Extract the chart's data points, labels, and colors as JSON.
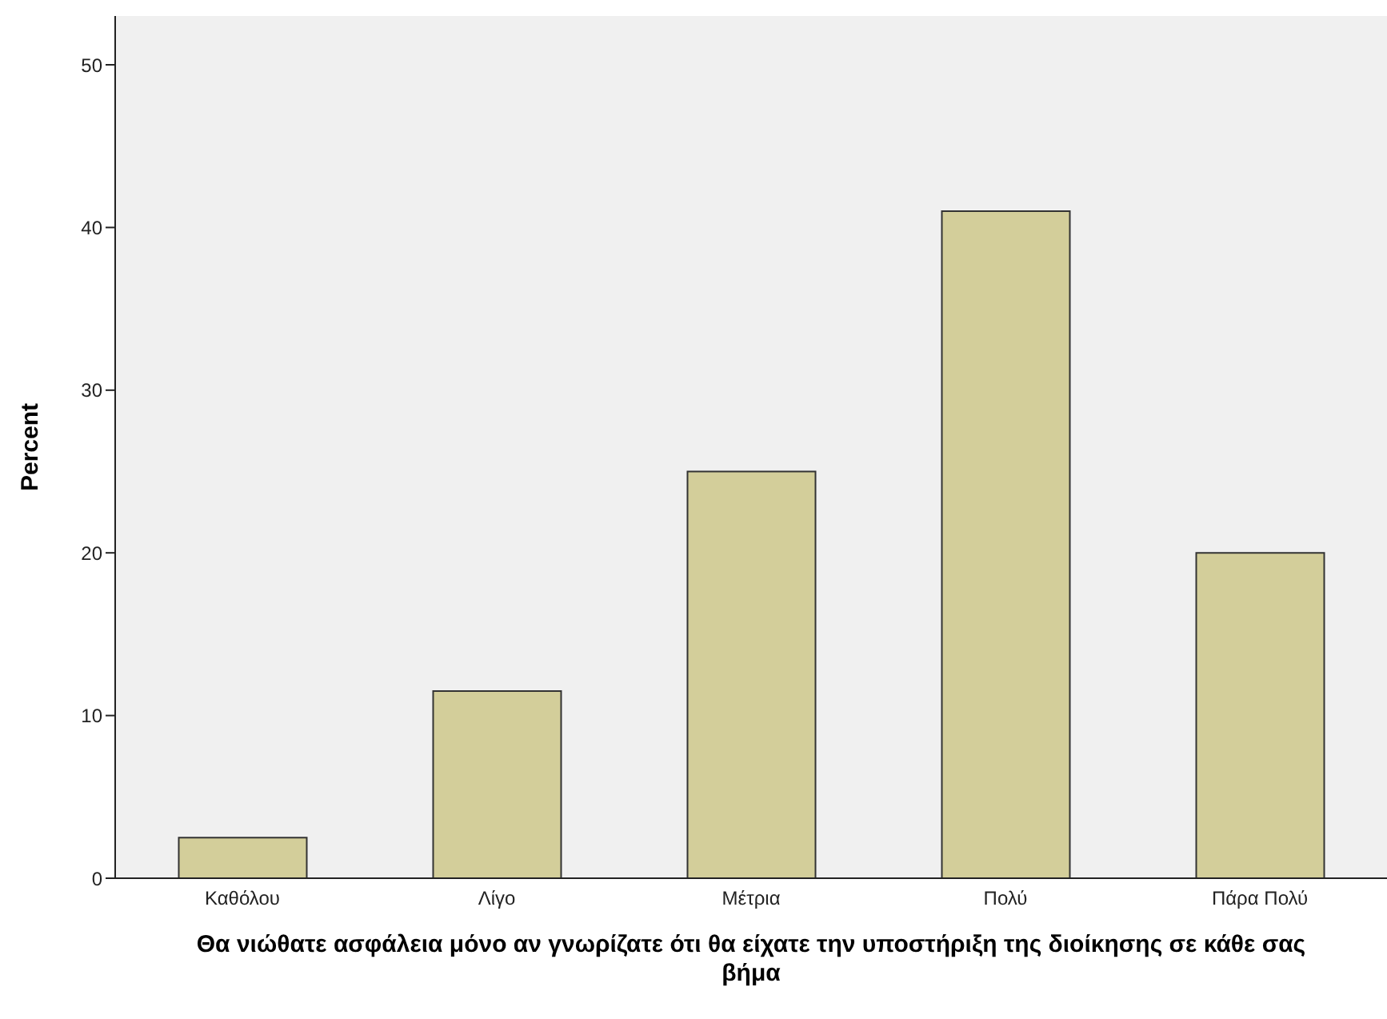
{
  "chart_data": {
    "type": "bar",
    "xlabel": "Θα νιώθατε ασφάλεια μόνο αν γνωρίζατε ότι θα είχατε την υποστήριξη της διοίκησης σε κάθε σας βήμα",
    "ylabel": "Percent",
    "categories": [
      "Καθόλου",
      "Λίγο",
      "Μέτρια",
      "Πολύ",
      "Πάρα Πολύ"
    ],
    "values": [
      2.5,
      11.5,
      25,
      41,
      20
    ],
    "color": "#d3ce9a",
    "ylim": [
      0,
      53
    ],
    "yticks": [
      0,
      10,
      20,
      30,
      40,
      50
    ],
    "grid": false
  }
}
